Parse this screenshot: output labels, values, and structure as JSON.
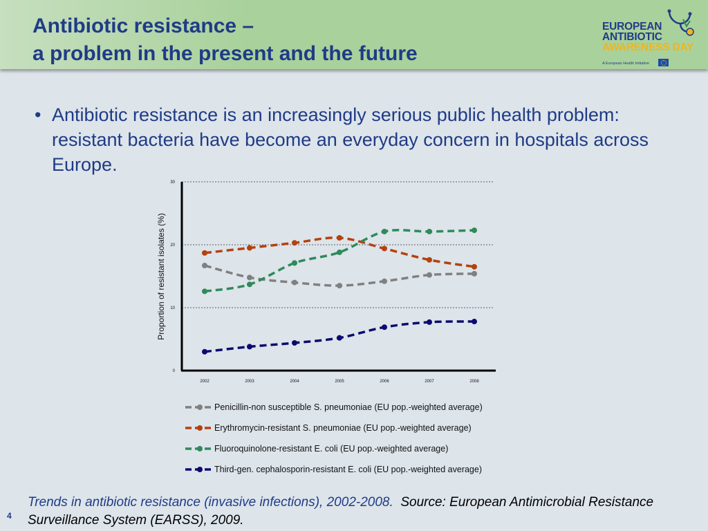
{
  "header": {
    "title_line1": "Antibiotic resistance –",
    "title_line2": "a problem in the present and the future",
    "logo": {
      "line1": "EUROPEAN",
      "line2": "ANTIBIOTIC",
      "line3": "AWARENESS DAY",
      "tagline": "A European Health Initiative"
    }
  },
  "bullet": {
    "dot": "•",
    "text": "Antibiotic resistance is an increasingly serious public health problem: resistant bacteria have become an everyday concern in hospitals across Europe."
  },
  "chart_data": {
    "type": "line",
    "title": "",
    "xlabel": "",
    "ylabel": "Proportion of resistant isolates (%)",
    "x": [
      "2002",
      "2003",
      "2004",
      "2005",
      "2006",
      "2007",
      "2008"
    ],
    "ylim": [
      0,
      30
    ],
    "yticks": [
      0,
      10,
      20,
      30
    ],
    "grid": true,
    "legend_position": "bottom",
    "series": [
      {
        "name": "Penicillin-non susceptible S. pneumoniae (EU pop.-weighted average)",
        "color": "#808080",
        "values": [
          16.7,
          14.8,
          14.0,
          13.5,
          14.2,
          15.2,
          15.4
        ]
      },
      {
        "name": "Erythromycin-resistant S. pneumoniae (EU pop.-weighted average)",
        "color": "#b5410f",
        "values": [
          18.7,
          19.5,
          20.3,
          21.1,
          19.4,
          17.6,
          16.5
        ]
      },
      {
        "name": "Fluoroquinolone-resistant E. coli (EU pop.-weighted average)",
        "color": "#2f8a5a",
        "values": [
          12.6,
          13.7,
          17.1,
          18.8,
          22.1,
          22.1,
          22.3
        ]
      },
      {
        "name": "Third-gen. cephalosporin-resistant E. coli (EU pop.-weighted average)",
        "color": "#0a0a70",
        "values": [
          3.0,
          3.8,
          4.4,
          5.2,
          6.9,
          7.7,
          7.8
        ]
      }
    ]
  },
  "caption": {
    "trends": "Trends in antibiotic resistance (invasive infections), 2002-2008.",
    "source": "Source: European Antimicrobial Resistance Surveillance System (EARSS), 2009."
  },
  "page_number": "4"
}
